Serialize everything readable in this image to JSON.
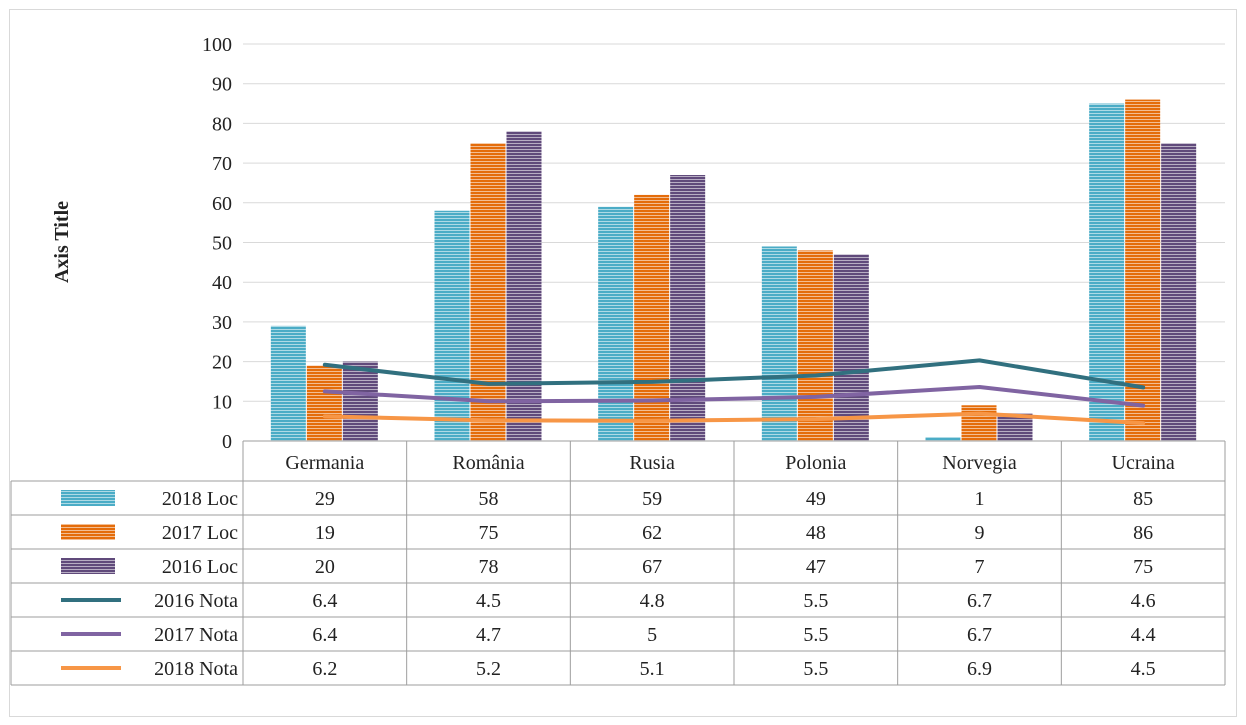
{
  "chart_data": {
    "type": "bar",
    "ylabel": "Axis Title",
    "ylim": [
      0,
      100
    ],
    "yticks": [
      0,
      10,
      20,
      30,
      40,
      50,
      60,
      70,
      80,
      90,
      100
    ],
    "categories": [
      "Germania",
      "România",
      "Rusia",
      "Polonia",
      "Norvegia",
      "Ucraina"
    ],
    "series": [
      {
        "name": "2018 Loc",
        "kind": "bar",
        "color": "#4bacc6",
        "values": [
          29,
          58,
          59,
          49,
          1,
          85
        ]
      },
      {
        "name": "2017 Loc",
        "kind": "bar",
        "color": "#e46c0a",
        "values": [
          19,
          75,
          62,
          48,
          9,
          86
        ]
      },
      {
        "name": "2016 Loc",
        "kind": "bar",
        "color": "#604a7b",
        "values": [
          20,
          78,
          67,
          47,
          7,
          75
        ]
      },
      {
        "name": "2016 Nota",
        "kind": "line",
        "color": "#31707f",
        "values": [
          6.4,
          4.5,
          4.8,
          5.5,
          6.7,
          4.6
        ]
      },
      {
        "name": "2017 Nota",
        "kind": "line",
        "color": "#8064a2",
        "values": [
          6.4,
          4.7,
          5,
          5.5,
          6.7,
          4.4
        ]
      },
      {
        "name": "2018 Nota",
        "kind": "line",
        "color": "#f79646",
        "values": [
          6.2,
          5.2,
          5.1,
          5.5,
          6.9,
          4.5
        ]
      }
    ],
    "line_series_plotted": [
      {
        "name": "2016 Nota",
        "values": [
          19.2,
          14.4,
          14.9,
          16.5,
          20.3,
          13.5
        ]
      },
      {
        "name": "2017 Nota",
        "values": [
          12.5,
          10.0,
          10.2,
          11.1,
          13.6,
          8.9
        ]
      },
      {
        "name": "2018 Nota",
        "values": [
          6.2,
          5.2,
          5.1,
          5.5,
          6.9,
          4.5
        ]
      }
    ],
    "data_table": true,
    "grid": true
  }
}
